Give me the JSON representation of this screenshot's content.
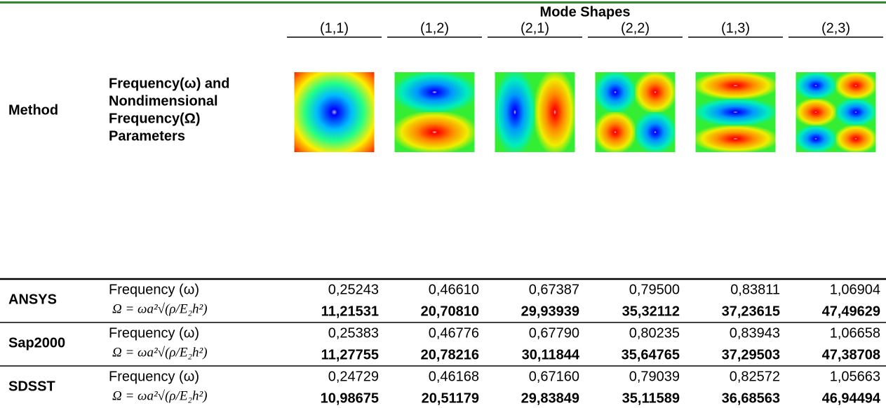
{
  "table": {
    "header": {
      "method": "Method",
      "parameters": [
        "Frequency(ω) and",
        "Nondimensional",
        "Frequency(Ω)",
        "Parameters"
      ],
      "mode_shapes": "Mode Shapes",
      "modes": [
        "(1,1)",
        "(1,2)",
        "(2,1)",
        "(2,2)",
        "(1,3)",
        "(2,3)"
      ]
    },
    "rows": [
      {
        "method": "ANSYS",
        "frequency_label": "Frequency (ω)",
        "omega_label": "Ω = ωa²√(ρ/E₂h²)",
        "frequency": [
          "0,25243",
          "0,46610",
          "0,67387",
          "0,79500",
          "0,83811",
          "1,06904"
        ],
        "omega": [
          "11,21531",
          "20,70810",
          "29,93939",
          "35,32112",
          "37,23615",
          "47,49629"
        ]
      },
      {
        "method": "Sap2000",
        "frequency_label": "Frequency (ω)",
        "omega_label": "Ω = ωa²√(ρ/E₂h²)",
        "frequency": [
          "0,25383",
          "0,46776",
          "0,67790",
          "0,80235",
          "0,83943",
          "1,06658"
        ],
        "omega": [
          "11,27755",
          "20,78216",
          "30,11844",
          "35,64765",
          "37,29503",
          "47,38708"
        ]
      },
      {
        "method": "SDSST",
        "frequency_label": "Frequency (ω)",
        "omega_label": "Ω = ωa²√(ρ/E₂h²)",
        "frequency": [
          "0,24729",
          "0,46168",
          "0,67160",
          "0,79039",
          "0,82572",
          "1,05663"
        ],
        "omega": [
          "10,98675",
          "20,51179",
          "29,83849",
          "35,11589",
          "36,68563",
          "46,94494"
        ]
      }
    ]
  }
}
